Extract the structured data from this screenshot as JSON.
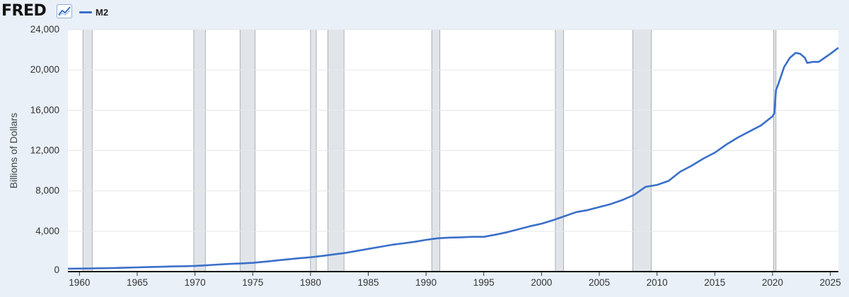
{
  "header": {
    "logo_text": "FRED",
    "logo_icon": "line-chart-icon"
  },
  "colors": {
    "series": "#3a6fc9",
    "recession": "#e1e5ea",
    "plot_bg": "#ffffff",
    "page_bg": "#e9f0f8"
  },
  "chart_data": {
    "type": "line",
    "title": "",
    "xlabel": "",
    "ylabel": "Billions of Dollars",
    "xlim": [
      1959.0,
      2025.7
    ],
    "ylim": [
      0,
      24000
    ],
    "x_ticks": [
      "1960",
      "1965",
      "1970",
      "1975",
      "1980",
      "1985",
      "1990",
      "1995",
      "2000",
      "2005",
      "2010",
      "2015",
      "2020",
      "2025"
    ],
    "y_ticks": [
      "0",
      "4,000",
      "8,000",
      "12,000",
      "16,000",
      "20,000",
      "24,000"
    ],
    "grid": "vertical-none, horizontal",
    "legend_position": "top-left",
    "recessions": [
      [
        1960.3,
        1961.1
      ],
      [
        1969.9,
        1970.9
      ],
      [
        1973.9,
        1975.2
      ],
      [
        1980.0,
        1980.5
      ],
      [
        1981.5,
        1982.9
      ],
      [
        1990.5,
        1991.2
      ],
      [
        2001.2,
        2001.9
      ],
      [
        2007.9,
        2009.5
      ],
      [
        2020.1,
        2020.3
      ]
    ],
    "series": [
      {
        "name": "M2",
        "x": [
          1959,
          1960,
          1961,
          1962,
          1963,
          1964,
          1965,
          1966,
          1967,
          1968,
          1969,
          1970,
          1971,
          1972,
          1973,
          1974,
          1975,
          1976,
          1977,
          1978,
          1979,
          1980,
          1981,
          1982,
          1983,
          1984,
          1985,
          1986,
          1987,
          1988,
          1989,
          1990,
          1991,
          1992,
          1993,
          1994,
          1995,
          1996,
          1997,
          1998,
          1999,
          2000,
          2001,
          2002,
          2003,
          2004,
          2005,
          2006,
          2007,
          2008,
          2009,
          2010,
          2011,
          2012,
          2013,
          2014,
          2015,
          2016,
          2017,
          2018,
          2019,
          2020.0,
          2020.15,
          2020.3,
          2020.5,
          2021.0,
          2021.5,
          2022.0,
          2022.4,
          2022.8,
          2023.0,
          2023.5,
          2024.0,
          2024.5,
          2025.0,
          2025.7
        ],
        "y": [
          290,
          300,
          315,
          335,
          360,
          390,
          420,
          445,
          475,
          510,
          535,
          565,
          620,
          700,
          760,
          810,
          870,
          970,
          1100,
          1210,
          1320,
          1420,
          1550,
          1700,
          1850,
          2050,
          2250,
          2450,
          2650,
          2800,
          2950,
          3150,
          3300,
          3370,
          3400,
          3450,
          3450,
          3660,
          3900,
          4200,
          4500,
          4750,
          5100,
          5500,
          5900,
          6100,
          6400,
          6700,
          7100,
          7600,
          8400,
          8600,
          9000,
          9900,
          10500,
          11200,
          11800,
          12600,
          13300,
          13900,
          14500,
          15400,
          15700,
          18000,
          18600,
          20300,
          21200,
          21700,
          21600,
          21200,
          20700,
          20800,
          20800,
          21200,
          21600,
          22200
        ]
      }
    ]
  }
}
